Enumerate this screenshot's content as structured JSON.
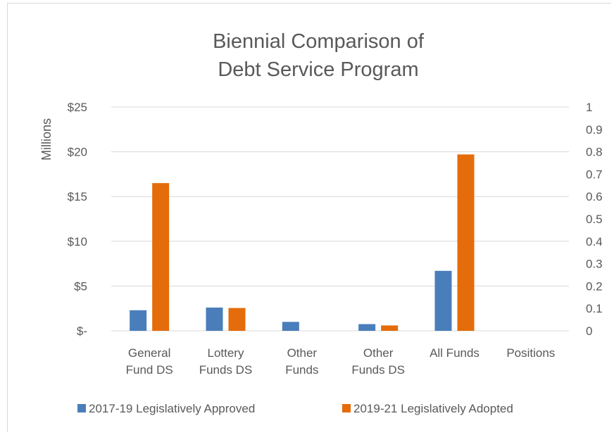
{
  "chart_data": {
    "type": "bar",
    "title_lines": [
      "Biennial Comparison of",
      "Debt Service Program"
    ],
    "ylabel": "Millions",
    "categories": [
      [
        "General",
        "Fund DS"
      ],
      [
        "Lottery",
        "Funds DS"
      ],
      [
        "Other",
        "Funds"
      ],
      [
        "Other",
        "Funds DS"
      ],
      [
        "All Funds"
      ],
      [
        "Positions"
      ]
    ],
    "series": [
      {
        "name": "2017-19 Legislatively Approved",
        "color": "#4a7ebb",
        "values": [
          2.3,
          2.6,
          1.0,
          0.75,
          6.7,
          0
        ]
      },
      {
        "name": "2019-21 Legislatively Adopted",
        "color": "#e46c0a",
        "values": [
          16.5,
          2.55,
          0,
          0.6,
          19.7,
          0
        ]
      }
    ],
    "ylim": [
      0,
      25
    ],
    "yticks": [
      "$-",
      "$5",
      "$10",
      "$15",
      "$20",
      "$25"
    ],
    "y2lim": [
      0,
      1
    ],
    "y2ticks": [
      "0",
      "0.1",
      "0.2",
      "0.3",
      "0.4",
      "0.5",
      "0.6",
      "0.7",
      "0.8",
      "0.9",
      "1"
    ],
    "grid": true,
    "legend": "bottom"
  }
}
